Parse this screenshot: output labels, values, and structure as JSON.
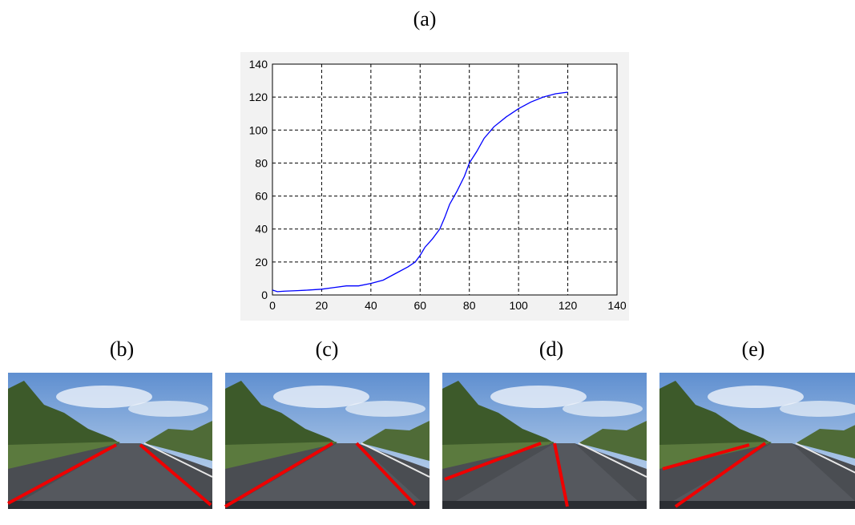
{
  "figure": {
    "panel_labels": [
      "(a)",
      "(b)",
      "(c)",
      "(d)",
      "(e)"
    ]
  },
  "chart_data": {
    "type": "line",
    "color": "#0000ff",
    "grid": true,
    "x": [
      0,
      2,
      5,
      10,
      15,
      20,
      25,
      30,
      35,
      40,
      45,
      50,
      55,
      58,
      60,
      62,
      65,
      68,
      70,
      72,
      75,
      78,
      80,
      83,
      86,
      90,
      95,
      100,
      105,
      110,
      115,
      120
    ],
    "values": [
      3,
      2,
      2.3,
      2.6,
      3,
      3.5,
      4.5,
      5.5,
      5.5,
      7,
      9,
      13,
      17,
      20,
      24,
      29,
      34,
      40,
      47,
      55,
      63,
      72,
      80,
      87,
      95,
      102,
      108,
      113,
      117,
      120,
      122,
      123
    ],
    "xlim": [
      0,
      140
    ],
    "ylim": [
      0,
      140
    ],
    "xticks": [
      0,
      20,
      40,
      60,
      80,
      100,
      120,
      140
    ],
    "yticks": [
      0,
      20,
      40,
      60,
      80,
      100,
      120,
      140
    ]
  }
}
